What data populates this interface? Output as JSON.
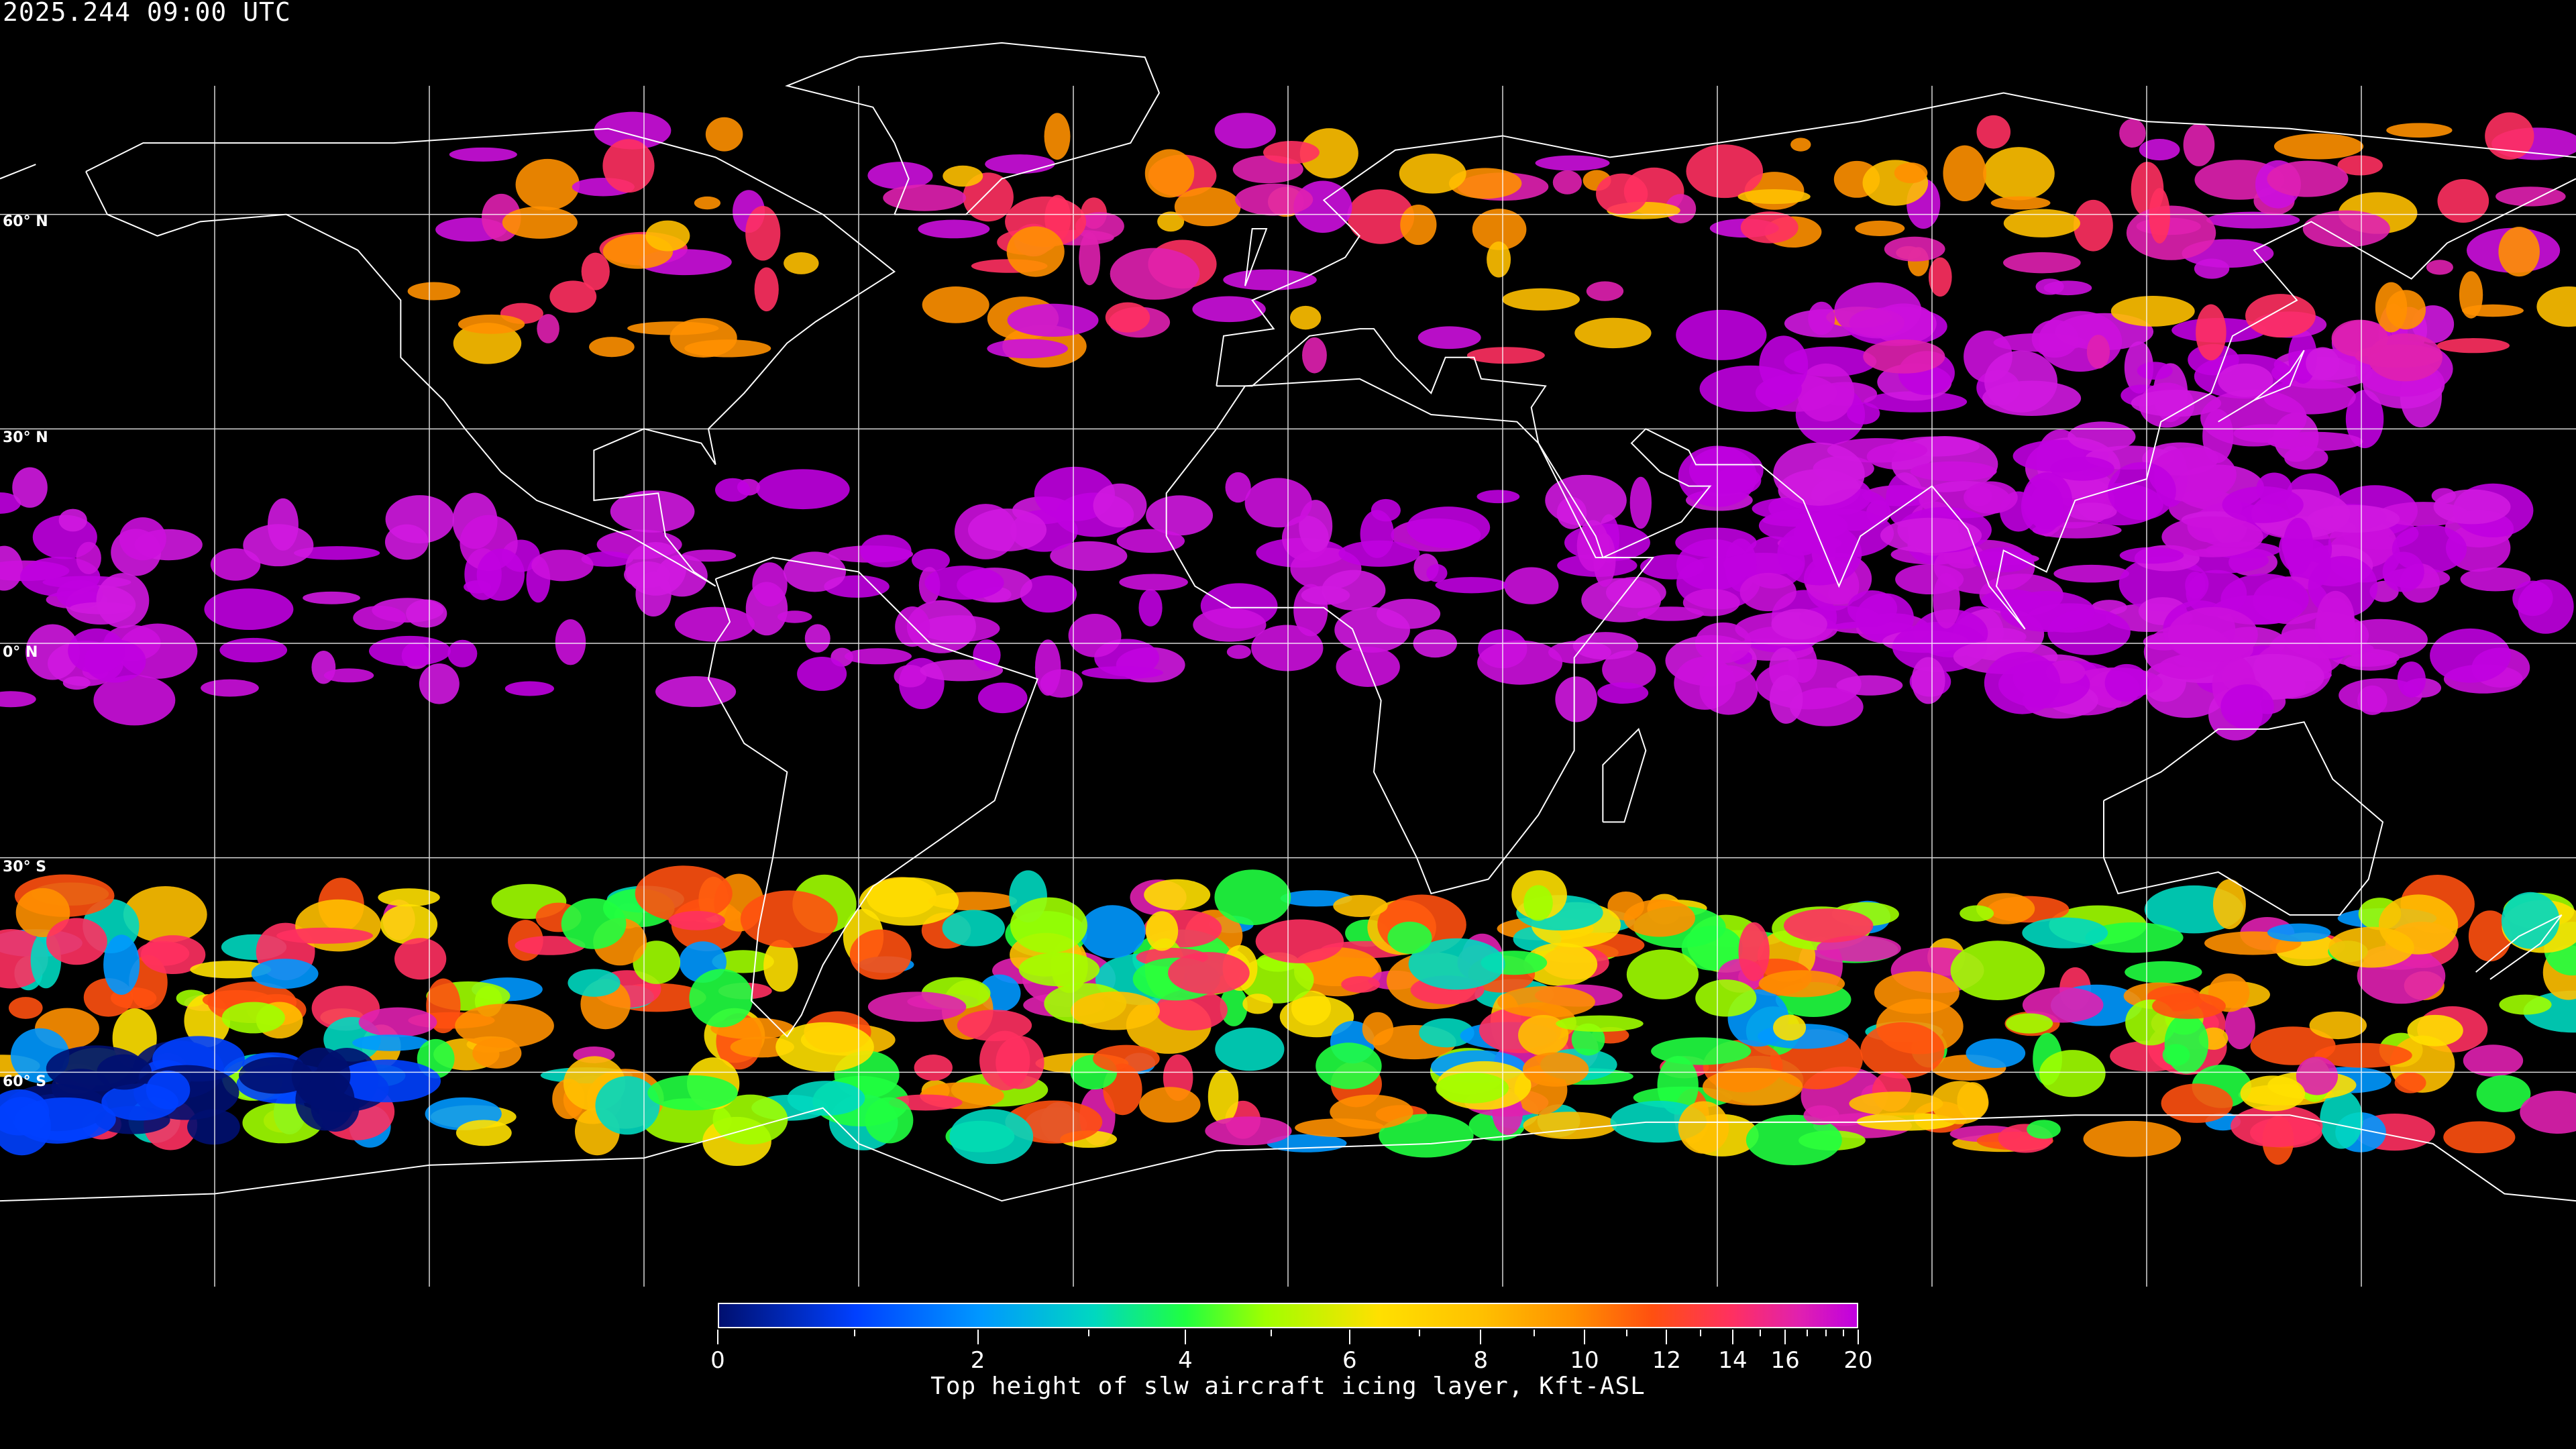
{
  "timestamp": "2025.244 09:00 UTC",
  "map": {
    "projection": "equirectangular",
    "graticule_lat_labels": [
      "60° N",
      "30° N",
      "0° N",
      "30° S",
      "60° S"
    ],
    "graticule_spacing_deg": 30,
    "coastline_color": "#ffffff",
    "background_color": "#000000"
  },
  "colorbar": {
    "title": "Top height of slw aircraft icing layer, Kft-ASL",
    "min": 0,
    "max": 20,
    "tick_labels": [
      "0",
      "2",
      "4",
      "6",
      "8",
      "10",
      "12",
      "14",
      "16",
      "20"
    ],
    "colors": [
      "#001070",
      "#0040ff",
      "#0098ff",
      "#00d8c0",
      "#20ff40",
      "#a0ff00",
      "#ffe000",
      "#ffc000",
      "#ff9000",
      "#ff5010",
      "#ff3060",
      "#e020b0",
      "#c000e0"
    ]
  }
}
